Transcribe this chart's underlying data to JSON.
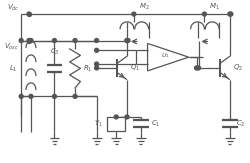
{
  "bg_color": "#ffffff",
  "line_color": "#555555",
  "lw": 0.9,
  "fig_w": 2.5,
  "fig_h": 1.63,
  "dpi": 100
}
